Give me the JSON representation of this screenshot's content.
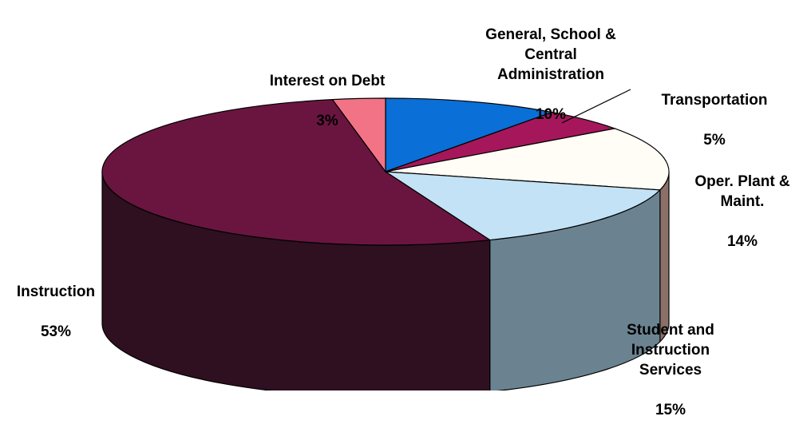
{
  "chart_data": {
    "type": "pie",
    "style": "3d",
    "slices": [
      {
        "label": "General, School &\nCentral\nAdministration",
        "value": 10,
        "pct_label": "10%",
        "color": "#0a6fd6",
        "side_color": "#064a91"
      },
      {
        "label": "Transportation",
        "value": 5,
        "pct_label": "5%",
        "color": "#a5175a",
        "side_color": "#6d0f3c"
      },
      {
        "label": "Oper. Plant &\nMaint.",
        "value": 14,
        "pct_label": "14%",
        "color": "#fffdf5",
        "side_color": "#8b7068"
      },
      {
        "label": "Student and\nInstruction\nServices",
        "value": 15,
        "pct_label": "15%",
        "color": "#c4e2f5",
        "side_color": "#6b8391"
      },
      {
        "label": "Instruction",
        "value": 53,
        "pct_label": "53%",
        "color": "#6a1540",
        "side_color": "#2e1020"
      },
      {
        "label": "Interest on Debt",
        "value": 3,
        "pct_label": "3%",
        "color": "#f27386",
        "side_color": "#8a3f4b"
      }
    ]
  }
}
